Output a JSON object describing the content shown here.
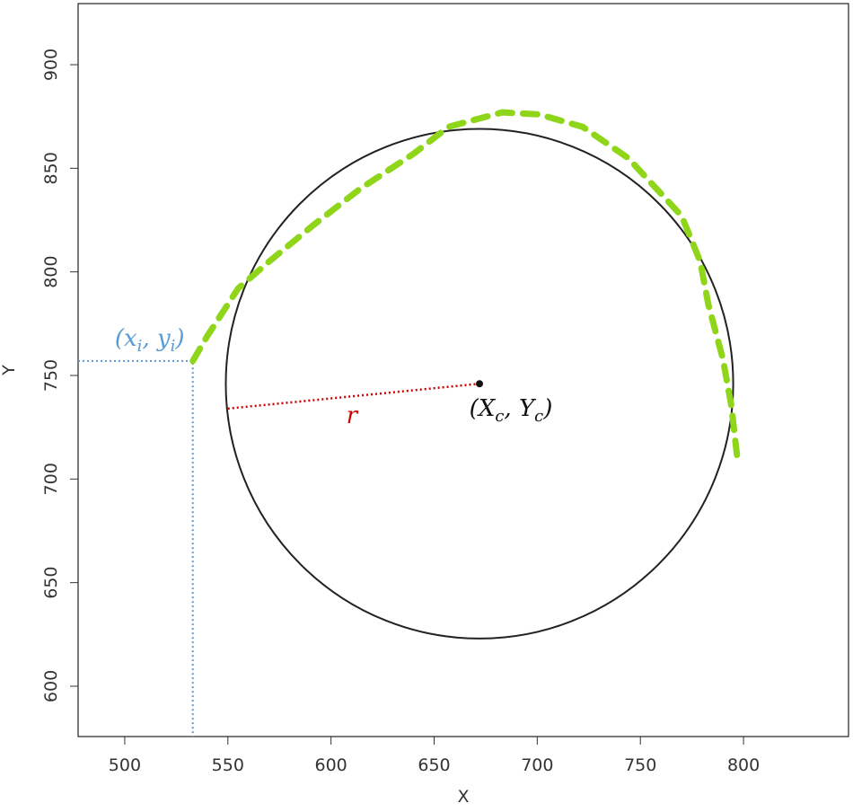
{
  "chart_data": {
    "type": "line",
    "x_label": "X",
    "y_label": "Y",
    "xlim": [
      477.4,
      850.9
    ],
    "ylim": [
      575.7,
      929.5
    ],
    "xticks": [
      500,
      550,
      600,
      650,
      700,
      750,
      800
    ],
    "yticks": [
      600,
      650,
      700,
      750,
      800,
      850,
      900
    ],
    "series": [
      {
        "color": "#8fd61a",
        "x": [
          533,
          540,
          555,
          570,
          592,
          614,
          640,
          657,
          683,
          701,
          722,
          744,
          770,
          779,
          783,
          790,
          794,
          797
        ],
        "values": [
          757,
          769,
          792,
          805,
          823,
          840,
          857,
          870,
          877,
          876,
          870,
          855,
          827,
          805,
          784,
          758,
          736,
          710
        ]
      }
    ],
    "circle": {
      "center": [
        672,
        746
      ],
      "radius": 123,
      "color": "#222222"
    },
    "radius_end": [
      550,
      734
    ],
    "annotations": [
      {
        "color": "#5b9bd5",
        "parts": [
          {
            "text": "(x"
          },
          {
            "text": "i",
            "sub": true
          },
          {
            "text": ", y"
          },
          {
            "text": "i",
            "sub": true
          },
          {
            "text": ")"
          }
        ]
      },
      {
        "color": "#cc0000",
        "parts": [
          {
            "text": "r"
          }
        ]
      },
      {
        "color": "#111111",
        "parts": [
          {
            "text": "(X"
          },
          {
            "text": "c",
            "sub": true
          },
          {
            "text": ", Y"
          },
          {
            "text": "c",
            "sub": true
          },
          {
            "text": ")"
          }
        ]
      }
    ]
  }
}
